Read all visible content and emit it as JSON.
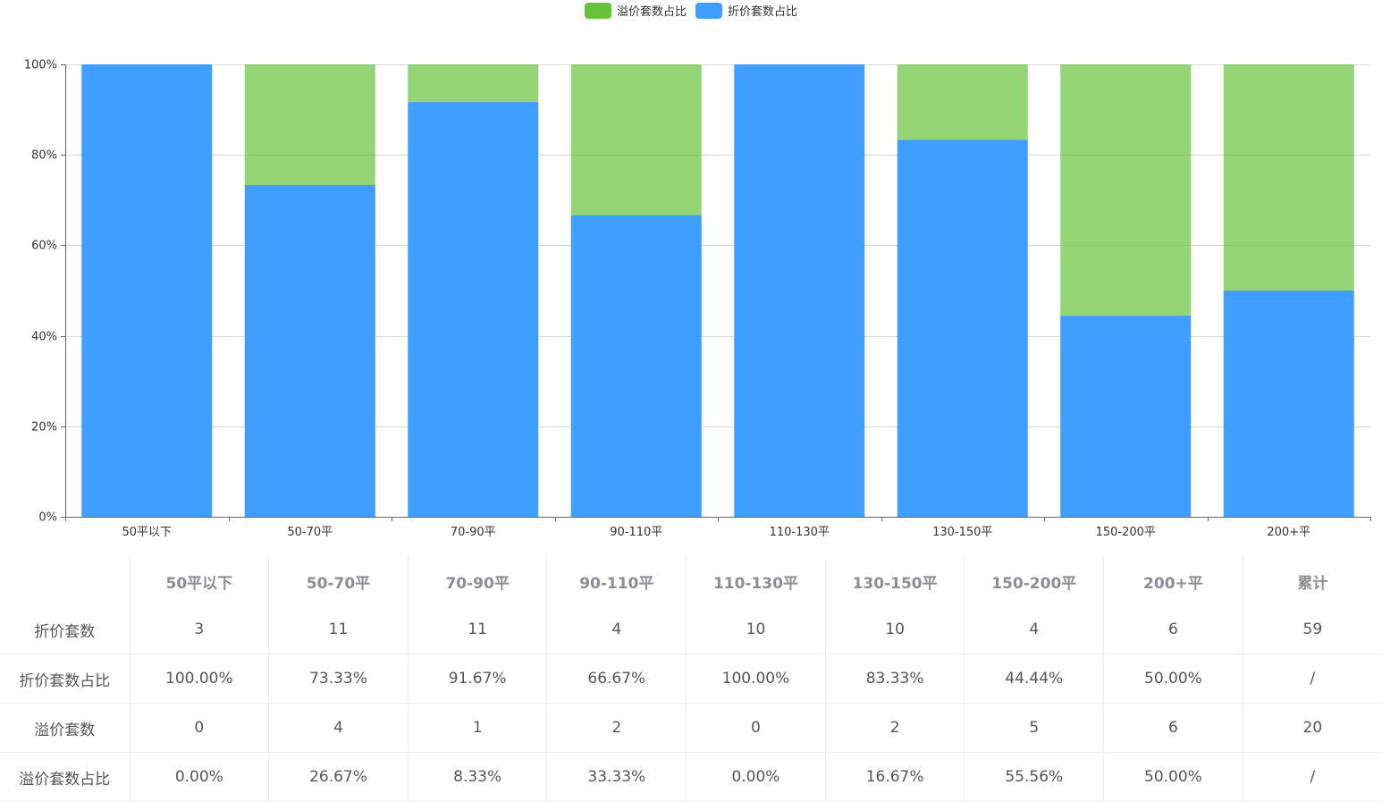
{
  "chart_data": {
    "type": "bar",
    "stacked": true,
    "title": "",
    "xlabel": "",
    "ylabel": "",
    "ylim": [
      0,
      100
    ],
    "y_ticks": [
      "0%",
      "20%",
      "40%",
      "60%",
      "80%",
      "100%"
    ],
    "grid": true,
    "legend_position": "top-center",
    "categories": [
      "50平以下",
      "50-70平",
      "70-90平",
      "90-110平",
      "110-130平",
      "130-150平",
      "150-200平",
      "200+平"
    ],
    "series": [
      {
        "name": "折价套数占比",
        "color": "#409eff",
        "values": [
          100.0,
          73.33,
          91.67,
          66.67,
          100.0,
          83.33,
          44.44,
          50.0
        ]
      },
      {
        "name": "溢价套数占比",
        "color": "#67c23a",
        "values": [
          0.0,
          26.67,
          8.33,
          33.33,
          0.0,
          16.67,
          55.56,
          50.0
        ]
      }
    ]
  },
  "legend": [
    {
      "label": "溢价套数占比",
      "color": "#67c23a"
    },
    {
      "label": "折价套数占比",
      "color": "#409eff"
    }
  ],
  "table": {
    "headers": [
      "",
      "50平以下",
      "50-70平",
      "70-90平",
      "90-110平",
      "110-130平",
      "130-150平",
      "150-200平",
      "200+平",
      "累计"
    ],
    "rows": [
      {
        "label": "折价套数",
        "cells": [
          "3",
          "11",
          "11",
          "4",
          "10",
          "10",
          "4",
          "6",
          "59"
        ]
      },
      {
        "label": "折价套数占比",
        "cells": [
          "100.00%",
          "73.33%",
          "91.67%",
          "66.67%",
          "100.00%",
          "83.33%",
          "44.44%",
          "50.00%",
          "/"
        ]
      },
      {
        "label": "溢价套数",
        "cells": [
          "0",
          "4",
          "1",
          "2",
          "0",
          "2",
          "5",
          "6",
          "20"
        ]
      },
      {
        "label": "溢价套数占比",
        "cells": [
          "0.00%",
          "26.67%",
          "8.33%",
          "33.33%",
          "0.00%",
          "16.67%",
          "55.56%",
          "50.00%",
          "/"
        ]
      }
    ]
  }
}
